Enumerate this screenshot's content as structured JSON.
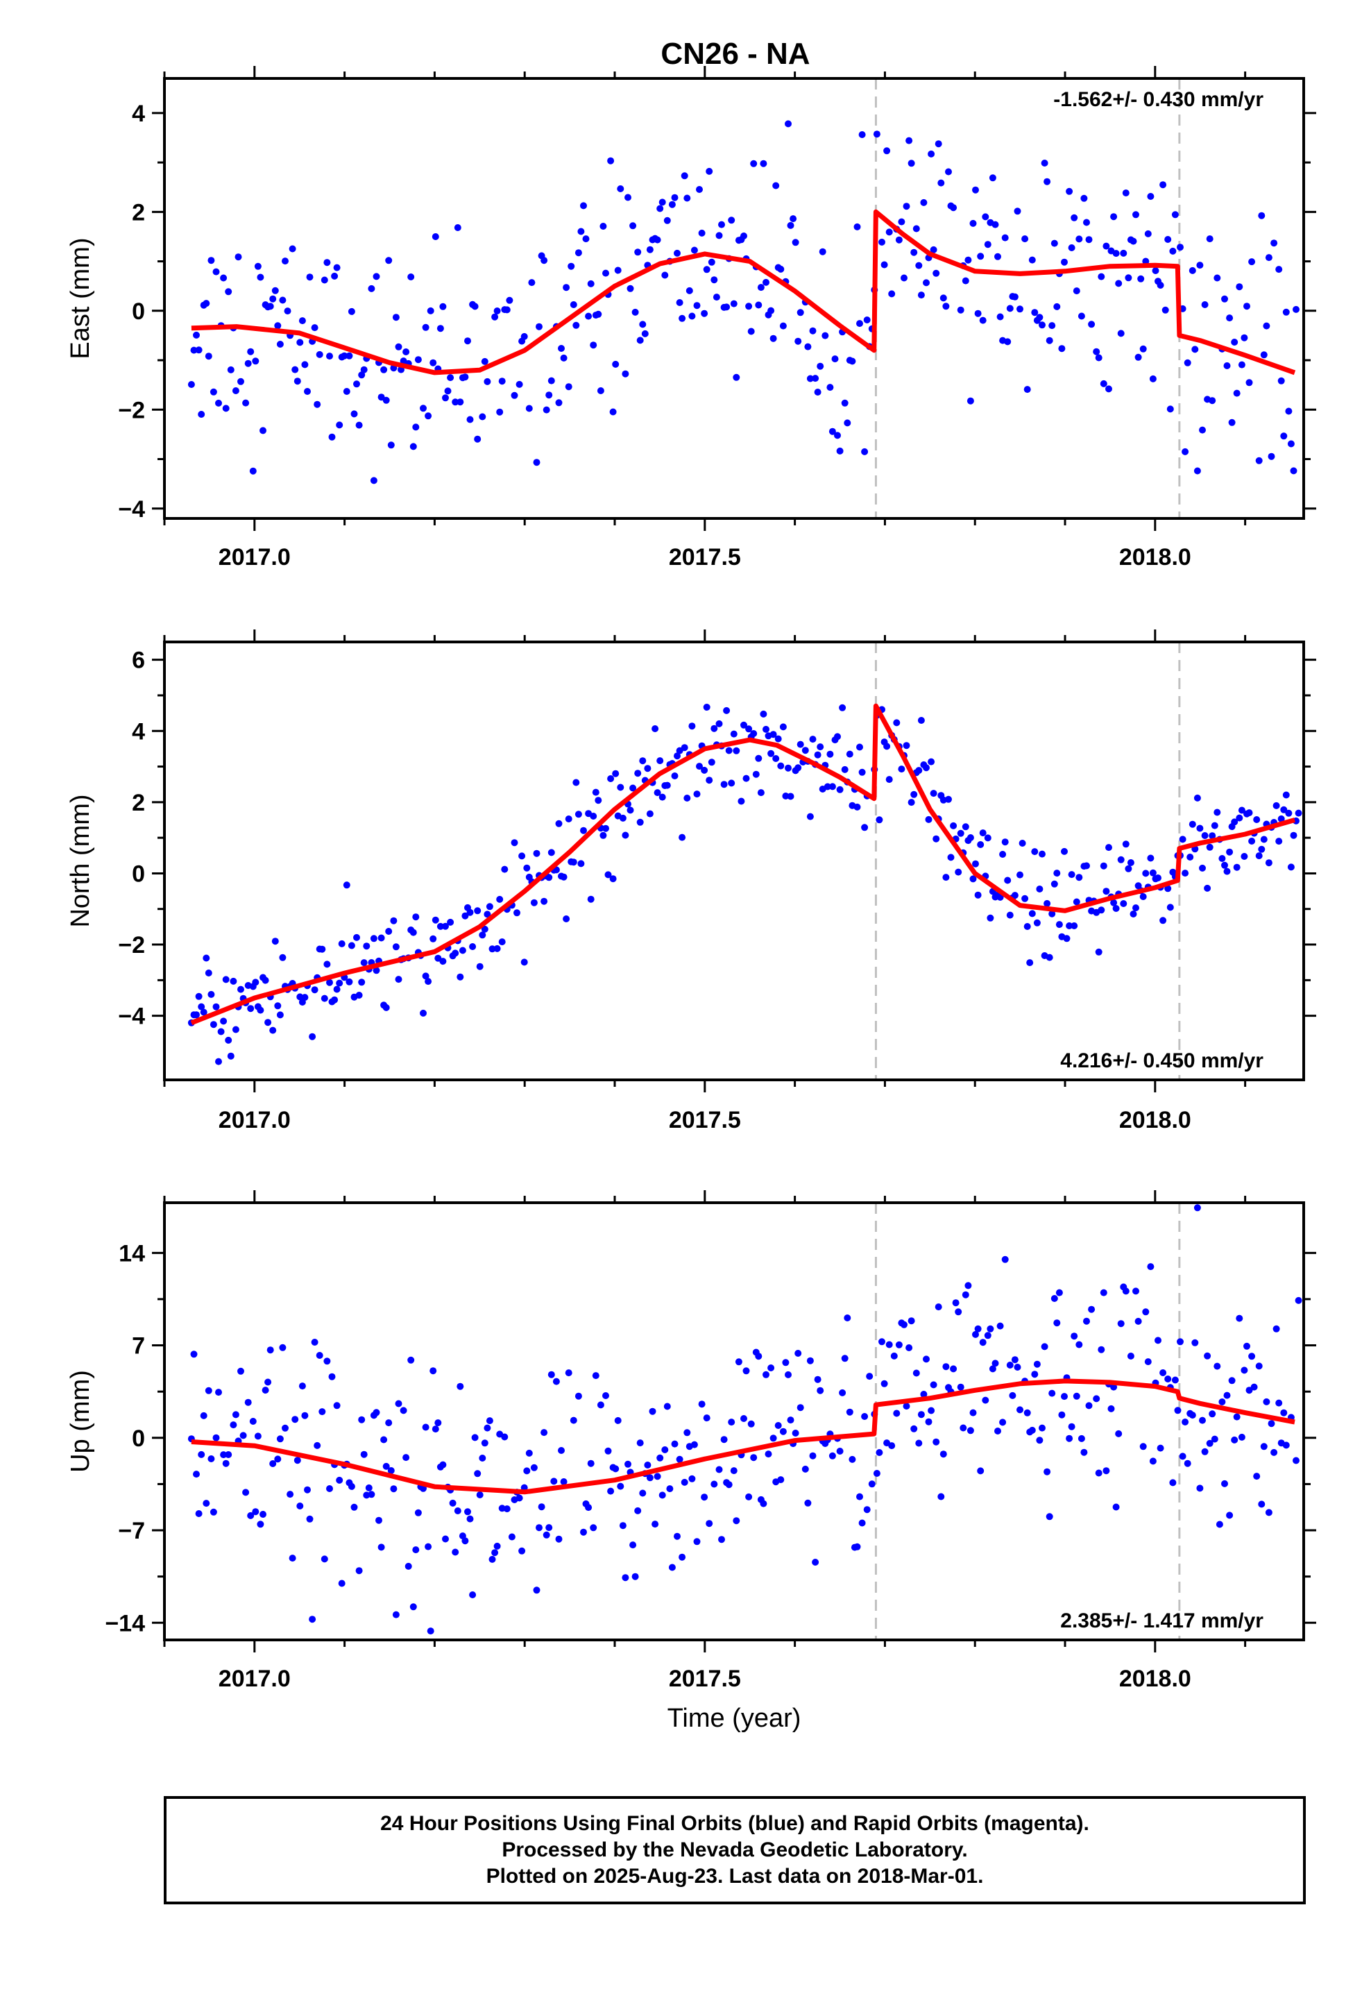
{
  "title": "CN26 - NA",
  "footer": {
    "lines": [
      "24 Hour Positions Using Final Orbits (blue) and Rapid Orbits (magenta).",
      "Processed by the Nevada Geodetic Laboratory.",
      "Plotted on 2025-Aug-23. Last data on 2018-Mar-01."
    ]
  },
  "colors": {
    "points": "#0000ff",
    "model": "#ff0000",
    "event_lines": "#c0c0c0",
    "frame": "#000000"
  },
  "chart_data": [
    {
      "type": "scatter",
      "ylabel": "East (mm)",
      "xlabel": "",
      "rate": "-1.562+/- 0.430 mm/yr",
      "rate_position": "top-right",
      "xlim": [
        2016.9,
        2018.165
      ],
      "ylim": [
        -4.2,
        4.7
      ],
      "xticks": [
        2017.0,
        2017.5,
        2018.0
      ],
      "xtick_labels": [
        "2017.0",
        "2017.5",
        "2018.0"
      ],
      "yticks": [
        -4,
        -2,
        0,
        2,
        4
      ],
      "ytick_labels": [
        "−4",
        "−2",
        "0",
        "2",
        "4"
      ],
      "event_lines": [
        2017.69,
        2018.027
      ],
      "series": [
        {
          "role": "model",
          "x": [
            2016.93,
            2016.98,
            2017.05,
            2017.1,
            2017.15,
            2017.2,
            2017.25,
            2017.3,
            2017.35,
            2017.4,
            2017.45,
            2017.5,
            2017.55,
            2017.6,
            2017.65,
            2017.688,
            2017.69,
            2017.72,
            2017.75,
            2017.8,
            2017.85,
            2017.9,
            2017.95,
            2018.0,
            2018.025,
            2018.027,
            2018.05,
            2018.1,
            2018.155
          ],
          "values": [
            -0.35,
            -0.32,
            -0.45,
            -0.75,
            -1.05,
            -1.25,
            -1.2,
            -0.8,
            -0.15,
            0.5,
            0.95,
            1.15,
            1.0,
            0.4,
            -0.3,
            -0.8,
            2.0,
            1.55,
            1.15,
            0.8,
            0.75,
            0.8,
            0.9,
            0.92,
            0.9,
            -0.5,
            -0.6,
            -0.9,
            -1.25
          ]
        }
      ]
    },
    {
      "type": "scatter",
      "ylabel": "North (mm)",
      "xlabel": "",
      "rate": "4.216+/- 0.450 mm/yr",
      "rate_position": "bottom-right",
      "xlim": [
        2016.9,
        2018.165
      ],
      "ylim": [
        -5.8,
        6.5
      ],
      "xticks": [
        2017.0,
        2017.5,
        2018.0
      ],
      "xtick_labels": [
        "2017.0",
        "2017.5",
        "2018.0"
      ],
      "yticks": [
        -4,
        -2,
        0,
        2,
        4,
        6
      ],
      "ytick_labels": [
        "−4",
        "−2",
        "0",
        "2",
        "4",
        "6"
      ],
      "event_lines": [
        2017.69,
        2018.027
      ],
      "series": [
        {
          "role": "model",
          "x": [
            2016.93,
            2017.0,
            2017.1,
            2017.2,
            2017.25,
            2017.3,
            2017.35,
            2017.4,
            2017.45,
            2017.5,
            2017.55,
            2017.58,
            2017.62,
            2017.65,
            2017.688,
            2017.69,
            2017.72,
            2017.75,
            2017.8,
            2017.85,
            2017.9,
            2017.95,
            2018.0,
            2018.025,
            2018.027,
            2018.05,
            2018.1,
            2018.155
          ],
          "values": [
            -4.2,
            -3.5,
            -2.8,
            -2.2,
            -1.5,
            -0.5,
            0.6,
            1.8,
            2.8,
            3.5,
            3.75,
            3.6,
            3.1,
            2.7,
            2.1,
            4.7,
            3.3,
            1.8,
            0.0,
            -0.9,
            -1.05,
            -0.7,
            -0.4,
            -0.2,
            0.7,
            0.85,
            1.1,
            1.5
          ]
        }
      ]
    },
    {
      "type": "scatter",
      "ylabel": "Up (mm)",
      "xlabel": "Time (year)",
      "rate": "2.385+/- 1.417 mm/yr",
      "rate_position": "bottom-right",
      "xlim": [
        2016.9,
        2018.165
      ],
      "ylim": [
        -15.3,
        17.8
      ],
      "xticks": [
        2017.0,
        2017.5,
        2018.0
      ],
      "xtick_labels": [
        "2017.0",
        "2017.5",
        "2018.0"
      ],
      "yticks": [
        -14,
        -7,
        0,
        7,
        14
      ],
      "ytick_labels": [
        "−14",
        "−7",
        "0",
        "7",
        "14"
      ],
      "event_lines": [
        2017.69,
        2018.027
      ],
      "series": [
        {
          "role": "model",
          "x": [
            2016.93,
            2017.0,
            2017.1,
            2017.2,
            2017.3,
            2017.4,
            2017.5,
            2017.6,
            2017.688,
            2017.69,
            2017.75,
            2017.8,
            2017.85,
            2017.9,
            2017.95,
            2018.0,
            2018.025,
            2018.027,
            2018.05,
            2018.1,
            2018.155
          ],
          "values": [
            -0.3,
            -0.6,
            -2.0,
            -3.7,
            -4.1,
            -3.2,
            -1.6,
            -0.2,
            0.3,
            2.5,
            3.0,
            3.6,
            4.1,
            4.3,
            4.2,
            3.9,
            3.5,
            3.0,
            2.6,
            1.9,
            1.2
          ]
        }
      ]
    }
  ]
}
